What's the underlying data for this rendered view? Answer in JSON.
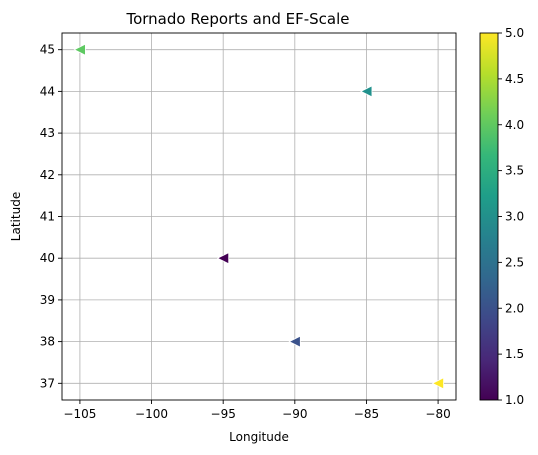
{
  "chart_data": {
    "type": "scatter",
    "title": "Tornado Reports and EF-Scale",
    "xlabel": "Longitude",
    "ylabel": "Latitude",
    "xlim": [
      -106.25,
      -78.75
    ],
    "ylim": [
      36.6,
      45.4
    ],
    "xticks": [
      -105,
      -100,
      -95,
      -90,
      -85,
      -80
    ],
    "xtick_labels": [
      "−105",
      "−100",
      "−95",
      "−90",
      "−85",
      "−80"
    ],
    "yticks": [
      37,
      38,
      39,
      40,
      41,
      42,
      43,
      44,
      45
    ],
    "ytick_labels": [
      "37",
      "38",
      "39",
      "40",
      "41",
      "42",
      "43",
      "44",
      "45"
    ],
    "grid": true,
    "marker": "triangle-left",
    "colormap": "viridis",
    "points": [
      {
        "x": -95,
        "y": 40,
        "value": 1,
        "color": "#440154"
      },
      {
        "x": -90,
        "y": 38,
        "value": 2,
        "color": "#3b528b"
      },
      {
        "x": -85,
        "y": 44,
        "value": 3,
        "color": "#21918c"
      },
      {
        "x": -105,
        "y": 45,
        "value": 4,
        "color": "#5ec962"
      },
      {
        "x": -80,
        "y": 37,
        "value": 5,
        "color": "#fde725"
      }
    ],
    "colorbar": {
      "range": [
        1,
        5
      ],
      "ticks": [
        1.0,
        1.5,
        2.0,
        2.5,
        3.0,
        3.5,
        4.0,
        4.5,
        5.0
      ],
      "tick_labels": [
        "1.0",
        "1.5",
        "2.0",
        "2.5",
        "3.0",
        "3.5",
        "4.0",
        "4.5",
        "5.0"
      ],
      "stops": [
        "#440154",
        "#482878",
        "#3e4989",
        "#31688e",
        "#26828e",
        "#1f9e89",
        "#35b779",
        "#6ece58",
        "#b5de2b",
        "#fde725"
      ]
    }
  }
}
